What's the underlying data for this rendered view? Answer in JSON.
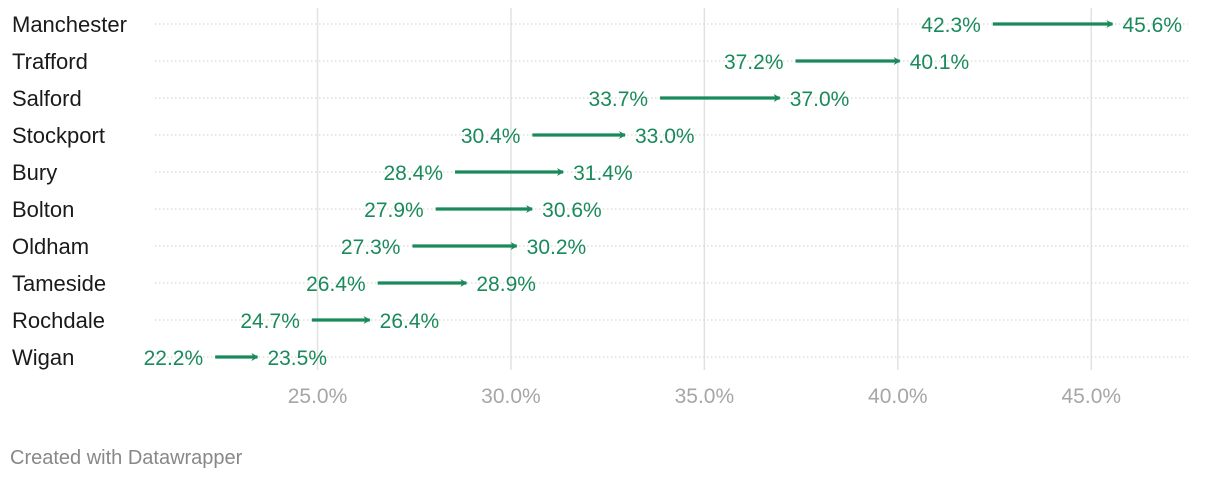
{
  "chart_data": {
    "type": "arrow",
    "categories": [
      "Manchester",
      "Trafford",
      "Salford",
      "Stockport",
      "Bury",
      "Bolton",
      "Oldham",
      "Tameside",
      "Rochdale",
      "Wigan"
    ],
    "series": [
      {
        "values": [
          42.3,
          37.2,
          33.7,
          30.4,
          28.4,
          27.9,
          27.3,
          26.4,
          24.7,
          22.2
        ]
      },
      {
        "values": [
          45.6,
          40.1,
          37.0,
          33.0,
          31.4,
          30.6,
          30.2,
          28.9,
          26.4,
          23.5
        ]
      }
    ],
    "value_labels_start": [
      "42.3%",
      "37.2%",
      "33.7%",
      "30.4%",
      "28.4%",
      "27.9%",
      "27.3%",
      "26.4%",
      "24.7%",
      "22.2%"
    ],
    "value_labels_end": [
      "45.6%",
      "40.1%",
      "37.0%",
      "33.0%",
      "31.4%",
      "30.6%",
      "30.2%",
      "28.9%",
      "26.4%",
      "23.5%"
    ],
    "xticks": [
      25,
      30,
      35,
      40,
      45
    ],
    "xtick_labels": [
      "25.0%",
      "30.0%",
      "35.0%",
      "40.0%",
      "45.0%"
    ],
    "xlim": [
      20.8,
      47.5
    ],
    "grid": true,
    "color": "#1a8a5a"
  },
  "footer": {
    "credit": "Created with Datawrapper"
  }
}
